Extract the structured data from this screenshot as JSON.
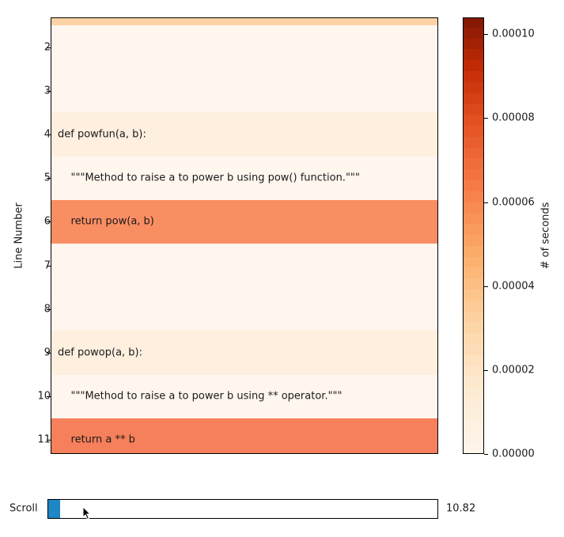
{
  "chart_data": {
    "type": "heatmap",
    "title": "",
    "xlabel": "",
    "ylabel": "Line Number",
    "colorbar_label": "# of seconds",
    "colormap": "Oranges",
    "clim": [
      0.0,
      0.000104
    ],
    "colorbar_ticks": [
      "0.00000",
      "0.00002",
      "0.00004",
      "0.00006",
      "0.00008",
      "0.00010"
    ],
    "ylim": [
      1.32,
      11.32
    ],
    "yticks": [
      "2",
      "3",
      "4",
      "5",
      "6",
      "7",
      "8",
      "9",
      "10",
      "11"
    ],
    "rows": [
      {
        "line": 1,
        "code": "",
        "seconds": 3.3e-05,
        "color": "#fdd3a5"
      },
      {
        "line": 2,
        "code": "",
        "seconds": 5e-07,
        "color": "#fff6ee"
      },
      {
        "line": 3,
        "code": "",
        "seconds": 5e-07,
        "color": "#fff6ee"
      },
      {
        "line": 4,
        "code": "def powfun(a, b):",
        "seconds": 6e-06,
        "color": "#feefdf"
      },
      {
        "line": 5,
        "code": "    \"\"\"Method to raise a to power b using pow() function.\"\"\"",
        "seconds": 1e-06,
        "color": "#fff6ee"
      },
      {
        "line": 6,
        "code": "    return pow(a, b)",
        "seconds": 6.1e-05,
        "color": "#f98e63"
      },
      {
        "line": 7,
        "code": "",
        "seconds": 5e-07,
        "color": "#fff6ee"
      },
      {
        "line": 8,
        "code": "",
        "seconds": 5e-07,
        "color": "#fff6ee"
      },
      {
        "line": 9,
        "code": "def powop(a, b):",
        "seconds": 6e-06,
        "color": "#feefdf"
      },
      {
        "line": 10,
        "code": "    \"\"\"Method to raise a to power b using ** operator.\"\"\"",
        "seconds": 1e-06,
        "color": "#fff6ee"
      },
      {
        "line": 11,
        "code": "    return a ** b",
        "seconds": 6.4e-05,
        "color": "#f6805b"
      }
    ]
  },
  "slider": {
    "label": "Scroll",
    "value": "10.82",
    "fill_color": "#1f87c4"
  }
}
